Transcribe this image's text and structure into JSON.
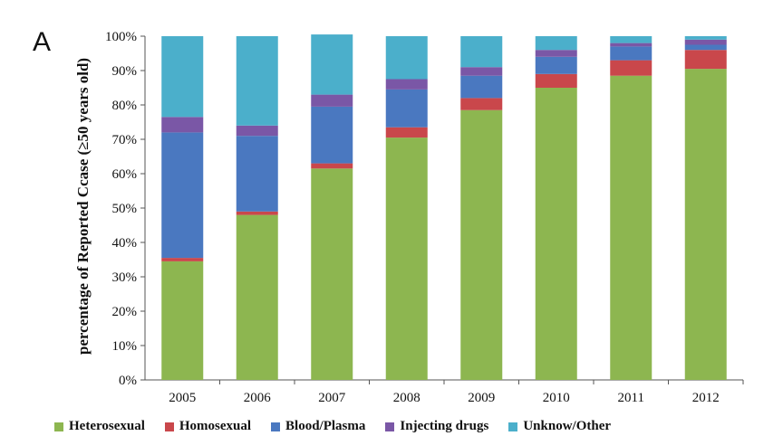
{
  "panel_label": "A",
  "chart_data": {
    "type": "bar",
    "stacked": true,
    "title": "",
    "xlabel": "",
    "ylabel": "percentage of Reported Ccase (≥50 years old)",
    "categories": [
      "2005",
      "2006",
      "2007",
      "2008",
      "2009",
      "2010",
      "2011",
      "2012"
    ],
    "ylim": [
      0,
      100
    ],
    "yticks": [
      "0%",
      "10%",
      "20%",
      "30%",
      "40%",
      "50%",
      "60%",
      "70%",
      "80%",
      "90%",
      "100%"
    ],
    "series": [
      {
        "name": "Heterosexual",
        "color": "#8DB650",
        "values": [
          34.5,
          48,
          61.5,
          70.5,
          78.5,
          85,
          88.5,
          90.5
        ]
      },
      {
        "name": "Homosexual",
        "color": "#C9474B",
        "values": [
          1,
          1,
          1.5,
          3,
          3.5,
          4,
          4.5,
          5.5
        ]
      },
      {
        "name": "Blood/Plasma",
        "color": "#4A78C0",
        "values": [
          36.5,
          22,
          16.5,
          11,
          6.5,
          5,
          4,
          1.5
        ]
      },
      {
        "name": "Injecting drugs",
        "color": "#7A57A6",
        "values": [
          4.5,
          3,
          3.5,
          3,
          2.5,
          2,
          1,
          1.5
        ]
      },
      {
        "name": "Unknow/Other",
        "color": "#4BAFCB",
        "values": [
          23.5,
          26,
          17.5,
          12.5,
          9,
          4,
          2,
          1
        ]
      }
    ],
    "legend": {
      "position": "bottom",
      "labels": [
        "Heterosexual",
        "Homosexual",
        "Blood/Plasma",
        "Injecting drugs",
        "Unknow/Other"
      ]
    },
    "grid": false
  }
}
